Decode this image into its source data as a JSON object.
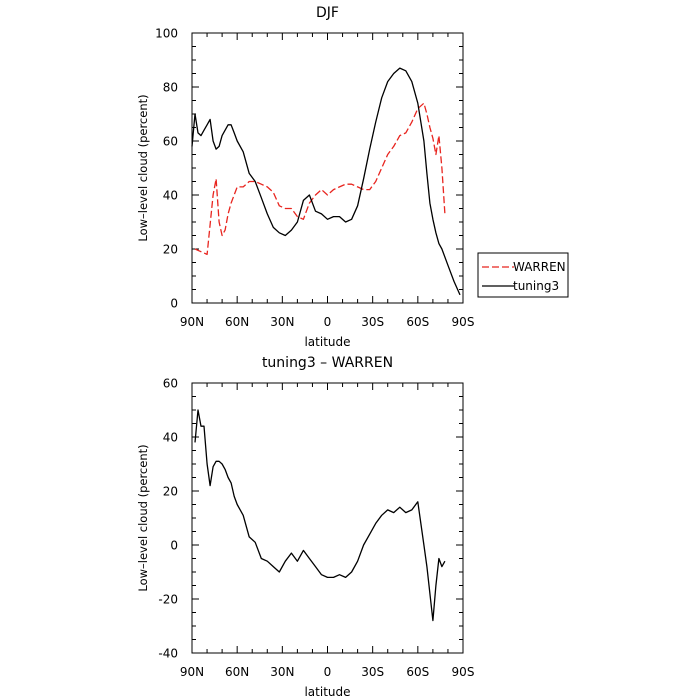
{
  "colors": {
    "warren": "#e8251f",
    "tuning3": "#000000",
    "axis": "#000000"
  },
  "chart_data": [
    {
      "type": "line",
      "title": "DJF",
      "xlabel": "latitude",
      "ylabel": "Low–level cloud (percent)",
      "xlim": [
        90,
        -90
      ],
      "ylim": [
        0,
        100
      ],
      "x_ticks": [
        {
          "value": 90,
          "label": "90N"
        },
        {
          "value": 60,
          "label": "60N"
        },
        {
          "value": 30,
          "label": "30N"
        },
        {
          "value": 0,
          "label": "0"
        },
        {
          "value": -30,
          "label": "30S"
        },
        {
          "value": -60,
          "label": "60S"
        },
        {
          "value": -90,
          "label": "90S"
        }
      ],
      "y_ticks": [
        0,
        20,
        40,
        60,
        80,
        100
      ],
      "legend": "right",
      "series": [
        {
          "name": "WARREN",
          "style": "dashed",
          "color": "red",
          "x": [
            88,
            84,
            80,
            76,
            74,
            72,
            70,
            68,
            66,
            64,
            60,
            56,
            52,
            48,
            44,
            40,
            36,
            32,
            28,
            24,
            20,
            16,
            12,
            8,
            4,
            0,
            -4,
            -8,
            -12,
            -16,
            -20,
            -24,
            -28,
            -32,
            -36,
            -40,
            -44,
            -48,
            -52,
            -56,
            -60,
            -64,
            -66,
            -68,
            -70,
            -72,
            -74,
            -76,
            -78
          ],
          "y": [
            20,
            19,
            18,
            40,
            46,
            30,
            25,
            27,
            33,
            37,
            43,
            43,
            45,
            45,
            44,
            43,
            41,
            36,
            35,
            35,
            32,
            31,
            37,
            40,
            42,
            40,
            42,
            43,
            44,
            44,
            43,
            42,
            42,
            45,
            50,
            55,
            58,
            62,
            63,
            67,
            72,
            74,
            70,
            65,
            61,
            55,
            62,
            50,
            33
          ]
        },
        {
          "name": "tuning3",
          "style": "solid",
          "color": "black",
          "x": [
            90,
            88,
            86,
            84,
            82,
            80,
            78,
            76,
            74,
            72,
            70,
            68,
            66,
            64,
            62,
            60,
            56,
            52,
            48,
            44,
            40,
            36,
            32,
            28,
            24,
            20,
            16,
            12,
            8,
            4,
            0,
            -4,
            -8,
            -12,
            -16,
            -20,
            -24,
            -28,
            -32,
            -36,
            -40,
            -44,
            -48,
            -52,
            -56,
            -60,
            -64,
            -66,
            -68,
            -70,
            -72,
            -74,
            -76,
            -80,
            -84,
            -88
          ],
          "y": [
            58,
            70,
            63,
            62,
            64,
            66,
            68,
            60,
            57,
            58,
            62,
            64,
            66,
            66,
            63,
            60,
            56,
            48,
            45,
            39,
            33,
            28,
            26,
            25,
            27,
            30,
            38,
            40,
            34,
            33,
            31,
            32,
            32,
            30,
            31,
            36,
            46,
            57,
            67,
            76,
            82,
            85,
            87,
            86,
            82,
            74,
            60,
            48,
            37,
            31,
            26,
            22,
            20,
            14,
            8,
            3
          ]
        }
      ]
    },
    {
      "type": "line",
      "title": "tuning3 – WARREN",
      "xlabel": "latitude",
      "ylabel": "Low–level cloud (percent)",
      "xlim": [
        90,
        -90
      ],
      "ylim": [
        -40,
        60
      ],
      "x_ticks": [
        {
          "value": 90,
          "label": "90N"
        },
        {
          "value": 60,
          "label": "60N"
        },
        {
          "value": 30,
          "label": "30N"
        },
        {
          "value": 0,
          "label": "0"
        },
        {
          "value": -30,
          "label": "30S"
        },
        {
          "value": -60,
          "label": "60S"
        },
        {
          "value": -90,
          "label": "90S"
        }
      ],
      "y_ticks": [
        -40,
        -20,
        0,
        20,
        40,
        60
      ],
      "series": [
        {
          "style": "solid",
          "color": "black",
          "x": [
            88,
            86,
            84,
            82,
            80,
            78,
            76,
            74,
            72,
            70,
            68,
            66,
            64,
            62,
            60,
            56,
            52,
            48,
            44,
            40,
            36,
            32,
            28,
            24,
            20,
            16,
            12,
            8,
            4,
            0,
            -4,
            -8,
            -12,
            -16,
            -20,
            -24,
            -28,
            -32,
            -36,
            -40,
            -44,
            -48,
            -52,
            -56,
            -60,
            -64,
            -66,
            -68,
            -70,
            -72,
            -74,
            -76,
            -78
          ],
          "y": [
            38,
            50,
            44,
            44,
            30,
            22,
            29,
            31,
            31,
            30,
            28,
            25,
            23,
            18,
            15,
            11,
            3,
            1,
            -5,
            -6,
            -8,
            -10,
            -6,
            -3,
            -6,
            -2,
            -5,
            -8,
            -11,
            -12,
            -12,
            -11,
            -12,
            -10,
            -6,
            0,
            4,
            8,
            11,
            13,
            12,
            14,
            12,
            13,
            16,
            0,
            -8,
            -18,
            -28,
            -15,
            -5,
            -8,
            -6
          ]
        }
      ]
    }
  ]
}
